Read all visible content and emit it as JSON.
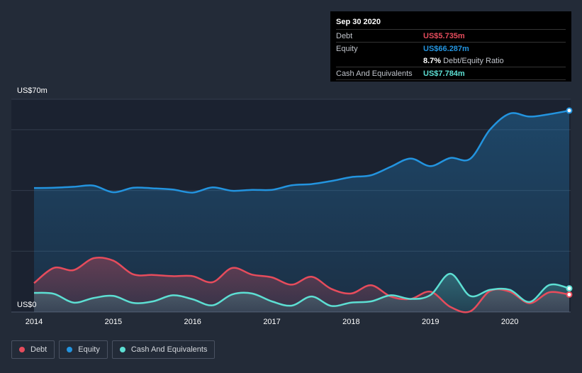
{
  "tooltip": {
    "date": "Sep 30 2020",
    "debt_label": "Debt",
    "debt_value": "US$5.735m",
    "equity_label": "Equity",
    "equity_value": "US$66.287m",
    "ratio_value": "8.7%",
    "ratio_label": "Debt/Equity Ratio",
    "cash_label": "Cash And Equivalents",
    "cash_value": "US$7.784m"
  },
  "legend": {
    "debt": "Debt",
    "equity": "Equity",
    "cash": "Cash And Equivalents"
  },
  "colors": {
    "background": "#232b38",
    "debt": "#e64c5c",
    "equity": "#2394df",
    "cash": "#5ddfd3"
  },
  "chart_data": {
    "type": "area",
    "y_unit": "US$ m",
    "ylim": [
      0,
      70
    ],
    "y_tick_labels": [
      {
        "value": 70,
        "label": "US$70m"
      },
      {
        "value": 0,
        "label": "US$0"
      }
    ],
    "gridlines": [
      0,
      20,
      40,
      60,
      70
    ],
    "xlim": [
      2014.0,
      2020.75
    ],
    "x_tick_labels": [
      "2014",
      "2015",
      "2016",
      "2017",
      "2018",
      "2019",
      "2020"
    ],
    "grid": true,
    "legend_position": "bottom-left",
    "series": [
      {
        "name": "Equity",
        "color": "#2394df",
        "x": [
          2014.0,
          2014.25,
          2014.5,
          2014.75,
          2015.0,
          2015.25,
          2015.5,
          2015.75,
          2016.0,
          2016.25,
          2016.5,
          2016.75,
          2017.0,
          2017.25,
          2017.5,
          2017.75,
          2018.0,
          2018.25,
          2018.5,
          2018.75,
          2019.0,
          2019.25,
          2019.5,
          2019.75,
          2020.0,
          2020.25,
          2020.5,
          2020.75
        ],
        "values": [
          40.8,
          40.9,
          41.2,
          41.6,
          39.4,
          40.9,
          40.7,
          40.3,
          39.3,
          41.0,
          39.9,
          40.2,
          40.2,
          41.7,
          42.1,
          43.1,
          44.4,
          45.0,
          47.8,
          50.5,
          48.0,
          50.7,
          50.4,
          60.0,
          65.3,
          64.3,
          65.1,
          66.287
        ]
      },
      {
        "name": "Debt",
        "color": "#e64c5c",
        "x": [
          2014.0,
          2014.25,
          2014.5,
          2014.75,
          2015.0,
          2015.25,
          2015.5,
          2015.75,
          2016.0,
          2016.25,
          2016.5,
          2016.75,
          2017.0,
          2017.25,
          2017.5,
          2017.75,
          2018.0,
          2018.25,
          2018.5,
          2018.75,
          2019.0,
          2019.25,
          2019.5,
          2019.75,
          2020.0,
          2020.25,
          2020.5,
          2020.75
        ],
        "values": [
          9.5,
          14.5,
          13.8,
          17.7,
          16.9,
          12.4,
          12.2,
          11.8,
          11.8,
          9.8,
          14.5,
          12.3,
          11.4,
          9.0,
          11.6,
          7.6,
          6.1,
          8.8,
          5.1,
          4.3,
          6.7,
          1.7,
          0.2,
          6.9,
          6.7,
          2.9,
          6.5,
          5.735
        ]
      },
      {
        "name": "Cash And Equivalents",
        "color": "#5ddfd3",
        "x": [
          2014.0,
          2014.25,
          2014.5,
          2014.75,
          2015.0,
          2015.25,
          2015.5,
          2015.75,
          2016.0,
          2016.25,
          2016.5,
          2016.75,
          2017.0,
          2017.25,
          2017.5,
          2017.75,
          2018.0,
          2018.25,
          2018.5,
          2018.75,
          2019.0,
          2019.25,
          2019.5,
          2019.75,
          2020.0,
          2020.25,
          2020.5,
          2020.75
        ],
        "values": [
          6.3,
          6.0,
          3.1,
          4.6,
          5.3,
          3.0,
          3.5,
          5.5,
          4.2,
          2.2,
          5.8,
          6.1,
          3.5,
          2.1,
          5.1,
          2.0,
          3.1,
          3.5,
          5.5,
          4.3,
          5.6,
          12.6,
          5.3,
          7.3,
          7.3,
          3.3,
          8.9,
          7.784
        ]
      }
    ]
  }
}
